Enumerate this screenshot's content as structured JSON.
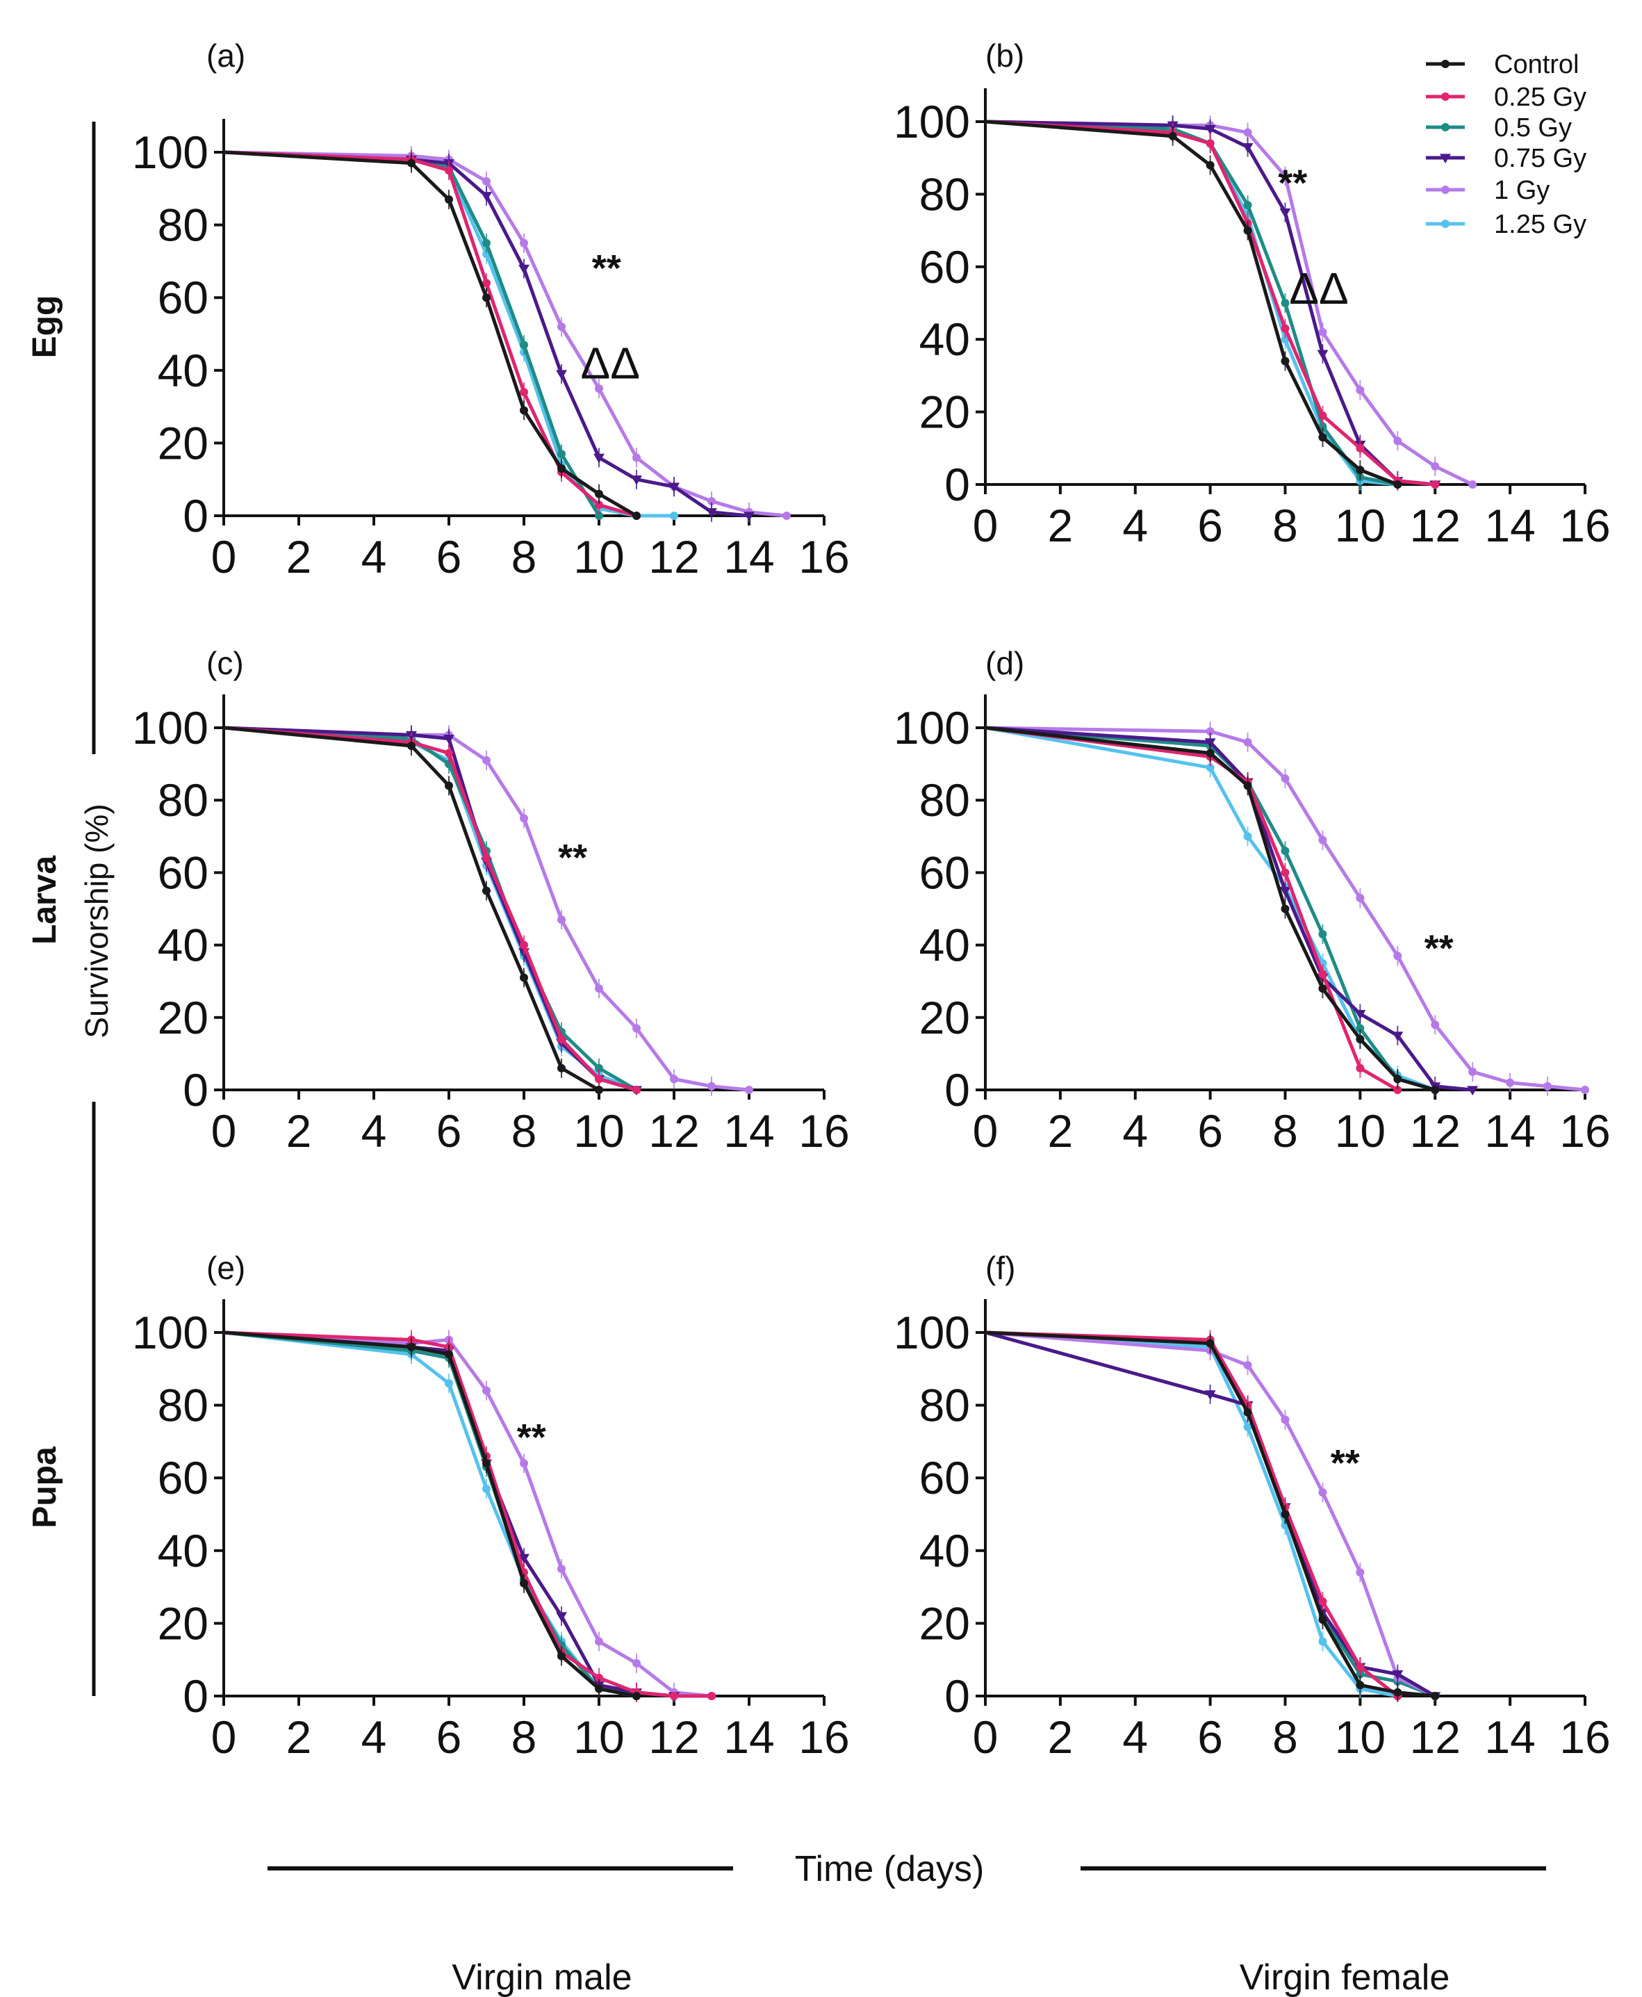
{
  "figure": {
    "ylabel": "Survivorship (%)",
    "xlabel": "Time (days)",
    "row_labels": [
      "Egg",
      "Larva",
      "Pupa"
    ],
    "column_labels": [
      "Virgin male",
      "Virgin female"
    ]
  },
  "legend": {
    "entries": [
      {
        "name": "Control",
        "color": "#1a1a1a",
        "marker": "dot"
      },
      {
        "name": "0.25 Gy",
        "color": "#e0256f",
        "marker": "dot"
      },
      {
        "name": "0.5 Gy",
        "color": "#1f8c86",
        "marker": "dot"
      },
      {
        "name": "0.75 Gy",
        "color": "#4a1a8a",
        "marker": "triangle-down"
      },
      {
        "name": "1 Gy",
        "color": "#b67ae8",
        "marker": "dot"
      },
      {
        "name": "1.25 Gy",
        "color": "#55c2ee",
        "marker": "dot"
      }
    ]
  },
  "chart_data": [
    {
      "id": "a",
      "panel_label": "(a)",
      "type": "line",
      "xlim": [
        0,
        16
      ],
      "ylim": [
        0,
        100
      ],
      "xticks": [
        0,
        2,
        4,
        6,
        8,
        10,
        12,
        14,
        16
      ],
      "yticks": [
        0,
        20,
        40,
        60,
        80,
        100
      ],
      "annotations": [
        {
          "text": "**",
          "x": 10.2,
          "y": 70
        },
        {
          "text": "ΔΔ",
          "x": 10.3,
          "y": 42
        }
      ],
      "series": [
        {
          "name": "Control",
          "x": [
            0,
            5,
            6,
            7,
            8,
            9,
            10,
            11
          ],
          "y": [
            100,
            97,
            87,
            60,
            29,
            13,
            6,
            0
          ]
        },
        {
          "name": "0.25 Gy",
          "x": [
            0,
            5,
            6,
            7,
            8,
            9,
            10,
            11
          ],
          "y": [
            100,
            98,
            95,
            64,
            34,
            12,
            3,
            0
          ]
        },
        {
          "name": "0.5 Gy",
          "x": [
            0,
            5,
            6,
            7,
            8,
            9,
            10
          ],
          "y": [
            100,
            98,
            96,
            75,
            47,
            17,
            0
          ]
        },
        {
          "name": "0.75 Gy",
          "x": [
            0,
            5,
            6,
            7,
            8,
            9,
            10,
            11,
            12,
            13,
            14
          ],
          "y": [
            100,
            98,
            97,
            88,
            68,
            39,
            16,
            10,
            8,
            1,
            0
          ]
        },
        {
          "name": "1 Gy",
          "x": [
            0,
            5,
            6,
            7,
            8,
            9,
            10,
            11,
            12,
            13,
            14,
            15
          ],
          "y": [
            100,
            99,
            98,
            92,
            75,
            52,
            35,
            16,
            8,
            4,
            1,
            0
          ]
        },
        {
          "name": "1.25 Gy",
          "x": [
            0,
            5,
            6,
            7,
            8,
            9,
            10,
            11,
            12
          ],
          "y": [
            100,
            98,
            95,
            72,
            45,
            14,
            2,
            0,
            0
          ]
        }
      ]
    },
    {
      "id": "b",
      "panel_label": "(b)",
      "type": "line",
      "xlim": [
        0,
        16
      ],
      "ylim": [
        0,
        100
      ],
      "xticks": [
        0,
        2,
        4,
        6,
        8,
        10,
        12,
        14,
        16
      ],
      "yticks": [
        0,
        20,
        40,
        60,
        80,
        100
      ],
      "annotations": [
        {
          "text": "**",
          "x": 8.2,
          "y": 85
        },
        {
          "text": "ΔΔ",
          "x": 8.9,
          "y": 54
        }
      ],
      "series": [
        {
          "name": "Control",
          "x": [
            0,
            5,
            6,
            7,
            8,
            9,
            10,
            11
          ],
          "y": [
            100,
            96,
            88,
            70,
            34,
            13,
            4,
            0
          ]
        },
        {
          "name": "0.25 Gy",
          "x": [
            0,
            5,
            6,
            7,
            8,
            9,
            10,
            11,
            12
          ],
          "y": [
            100,
            97,
            94,
            72,
            43,
            19,
            10,
            1,
            0
          ]
        },
        {
          "name": "0.5 Gy",
          "x": [
            0,
            5,
            6,
            7,
            8,
            9,
            10,
            11
          ],
          "y": [
            100,
            98,
            94,
            77,
            50,
            16,
            2,
            0
          ]
        },
        {
          "name": "0.75 Gy",
          "x": [
            0,
            5,
            6,
            7,
            8,
            9,
            10,
            11,
            12
          ],
          "y": [
            100,
            99,
            98,
            93,
            75,
            36,
            11,
            1,
            0
          ]
        },
        {
          "name": "1 Gy",
          "x": [
            0,
            5,
            6,
            7,
            8,
            9,
            10,
            11,
            12,
            13
          ],
          "y": [
            100,
            99,
            99,
            97,
            85,
            42,
            26,
            12,
            5,
            0
          ]
        },
        {
          "name": "1.25 Gy",
          "x": [
            0,
            5,
            6,
            7,
            8,
            9,
            10,
            11
          ],
          "y": [
            100,
            98,
            94,
            74,
            40,
            15,
            1,
            0
          ]
        }
      ]
    },
    {
      "id": "c",
      "panel_label": "(c)",
      "type": "line",
      "xlim": [
        0,
        16
      ],
      "ylim": [
        0,
        100
      ],
      "xticks": [
        0,
        2,
        4,
        6,
        8,
        10,
        12,
        14,
        16
      ],
      "yticks": [
        0,
        20,
        40,
        60,
        80,
        100
      ],
      "annotations": [
        {
          "text": "**",
          "x": 9.3,
          "y": 66
        }
      ],
      "series": [
        {
          "name": "Control",
          "x": [
            0,
            5,
            6,
            7,
            8,
            9,
            10
          ],
          "y": [
            100,
            95,
            84,
            55,
            31,
            6,
            0
          ]
        },
        {
          "name": "0.25 Gy",
          "x": [
            0,
            5,
            6,
            7,
            8,
            9,
            10,
            11
          ],
          "y": [
            100,
            96,
            93,
            64,
            40,
            14,
            3,
            0
          ]
        },
        {
          "name": "0.5 Gy",
          "x": [
            0,
            5,
            6,
            7,
            8,
            9,
            10,
            11
          ],
          "y": [
            100,
            97,
            90,
            66,
            38,
            16,
            6,
            0
          ]
        },
        {
          "name": "0.75 Gy",
          "x": [
            0,
            5,
            6,
            7,
            8,
            9,
            10,
            11
          ],
          "y": [
            100,
            98,
            97,
            63,
            38,
            13,
            3,
            0
          ]
        },
        {
          "name": "1 Gy",
          "x": [
            0,
            5,
            6,
            7,
            8,
            9,
            10,
            11,
            12,
            13,
            14
          ],
          "y": [
            100,
            98,
            98,
            91,
            75,
            47,
            28,
            17,
            3,
            1,
            0
          ]
        },
        {
          "name": "1.25 Gy",
          "x": [
            0,
            5,
            6,
            7,
            8,
            9,
            10,
            11
          ],
          "y": [
            100,
            96,
            91,
            62,
            37,
            12,
            4,
            0
          ]
        }
      ]
    },
    {
      "id": "d",
      "panel_label": "(d)",
      "type": "line",
      "xlim": [
        0,
        16
      ],
      "ylim": [
        0,
        100
      ],
      "xticks": [
        0,
        2,
        4,
        6,
        8,
        10,
        12,
        14,
        16
      ],
      "yticks": [
        0,
        20,
        40,
        60,
        80,
        100
      ],
      "annotations": [
        {
          "text": "**",
          "x": 12.1,
          "y": 41
        }
      ],
      "series": [
        {
          "name": "Control",
          "x": [
            0,
            6,
            7,
            8,
            9,
            10,
            11,
            12
          ],
          "y": [
            100,
            93,
            84,
            50,
            28,
            14,
            3,
            0
          ]
        },
        {
          "name": "0.25 Gy",
          "x": [
            0,
            6,
            7,
            8,
            9,
            10,
            11
          ],
          "y": [
            100,
            92,
            85,
            60,
            32,
            6,
            0
          ]
        },
        {
          "name": "0.5 Gy",
          "x": [
            0,
            6,
            7,
            8,
            9,
            10,
            11,
            12
          ],
          "y": [
            100,
            95,
            85,
            66,
            43,
            17,
            3,
            0
          ]
        },
        {
          "name": "0.75 Gy",
          "x": [
            0,
            6,
            7,
            8,
            9,
            10,
            11,
            12,
            13
          ],
          "y": [
            100,
            96,
            85,
            55,
            31,
            21,
            15,
            1,
            0
          ]
        },
        {
          "name": "1 Gy",
          "x": [
            0,
            6,
            7,
            8,
            9,
            10,
            11,
            12,
            13,
            14,
            15,
            16
          ],
          "y": [
            100,
            99,
            96,
            86,
            69,
            53,
            37,
            18,
            5,
            2,
            1,
            0
          ]
        },
        {
          "name": "1.25 Gy",
          "x": [
            0,
            6,
            7,
            8,
            9,
            10,
            11,
            12
          ],
          "y": [
            100,
            89,
            70,
            56,
            35,
            14,
            4,
            0
          ]
        }
      ]
    },
    {
      "id": "e",
      "panel_label": "(e)",
      "type": "line",
      "xlim": [
        0,
        16
      ],
      "ylim": [
        0,
        100
      ],
      "xticks": [
        0,
        2,
        4,
        6,
        8,
        10,
        12,
        14,
        16
      ],
      "yticks": [
        0,
        20,
        40,
        60,
        80,
        100
      ],
      "annotations": [
        {
          "text": "**",
          "x": 8.2,
          "y": 73
        }
      ],
      "series": [
        {
          "name": "Control",
          "x": [
            0,
            5,
            6,
            7,
            8,
            9,
            10,
            11
          ],
          "y": [
            100,
            96,
            94,
            64,
            31,
            11,
            2,
            0
          ]
        },
        {
          "name": "0.25 Gy",
          "x": [
            0,
            5,
            6,
            7,
            8,
            9,
            10,
            11,
            12,
            13
          ],
          "y": [
            100,
            98,
            96,
            66,
            34,
            12,
            5,
            1,
            0,
            0
          ]
        },
        {
          "name": "0.5 Gy",
          "x": [
            0,
            5,
            6,
            7,
            8,
            9,
            10,
            11
          ],
          "y": [
            100,
            95,
            93,
            63,
            32,
            14,
            2,
            0
          ]
        },
        {
          "name": "0.75 Gy",
          "x": [
            0,
            5,
            6,
            7,
            8,
            9,
            10,
            11,
            12
          ],
          "y": [
            100,
            96,
            95,
            64,
            38,
            22,
            3,
            1,
            0
          ]
        },
        {
          "name": "1 Gy",
          "x": [
            0,
            5,
            6,
            7,
            8,
            9,
            10,
            11,
            12,
            13
          ],
          "y": [
            100,
            97,
            98,
            84,
            64,
            35,
            15,
            9,
            1,
            0
          ]
        },
        {
          "name": "1.25 Gy",
          "x": [
            0,
            5,
            6,
            7,
            8,
            9,
            10,
            11
          ],
          "y": [
            100,
            94,
            86,
            57,
            32,
            15,
            2,
            0
          ]
        }
      ]
    },
    {
      "id": "f",
      "panel_label": "(f)",
      "type": "line",
      "xlim": [
        0,
        16
      ],
      "ylim": [
        0,
        100
      ],
      "xticks": [
        0,
        2,
        4,
        6,
        8,
        10,
        12,
        14,
        16
      ],
      "yticks": [
        0,
        20,
        40,
        60,
        80,
        100
      ],
      "annotations": [
        {
          "text": "**",
          "x": 9.6,
          "y": 66
        }
      ],
      "series": [
        {
          "name": "Control",
          "x": [
            0,
            6,
            7,
            8,
            9,
            10,
            11,
            12
          ],
          "y": [
            100,
            97,
            78,
            50,
            21,
            3,
            1,
            0
          ]
        },
        {
          "name": "0.25 Gy",
          "x": [
            0,
            6,
            7,
            8,
            9,
            10,
            11
          ],
          "y": [
            100,
            98,
            80,
            52,
            26,
            8,
            0
          ]
        },
        {
          "name": "0.5 Gy",
          "x": [
            0,
            6,
            7,
            8,
            9,
            10,
            11,
            12
          ],
          "y": [
            100,
            97,
            79,
            50,
            22,
            6,
            4,
            0
          ]
        },
        {
          "name": "0.75 Gy",
          "x": [
            0,
            6,
            7,
            8,
            9,
            10,
            11,
            12
          ],
          "y": [
            100,
            83,
            80,
            52,
            23,
            8,
            6,
            0
          ]
        },
        {
          "name": "1 Gy",
          "x": [
            0,
            6,
            7,
            8,
            9,
            10,
            11,
            12
          ],
          "y": [
            100,
            95,
            91,
            76,
            56,
            34,
            5,
            0
          ]
        },
        {
          "name": "1.25 Gy",
          "x": [
            0,
            6,
            7,
            8,
            9,
            10,
            11
          ],
          "y": [
            100,
            96,
            74,
            47,
            15,
            2,
            0
          ]
        }
      ]
    }
  ]
}
